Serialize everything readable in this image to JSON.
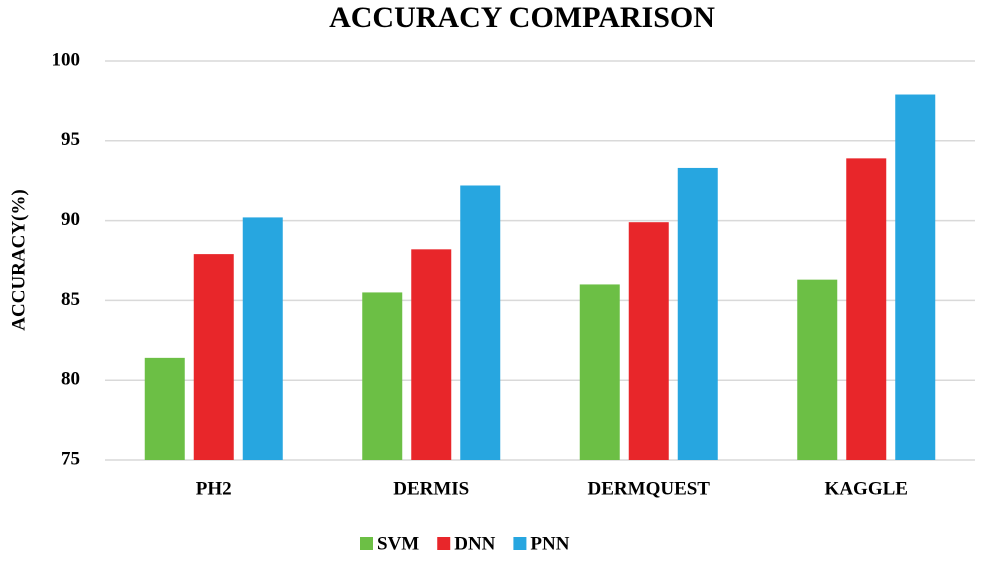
{
  "chart_data": {
    "type": "bar",
    "title": "ACCURACY COMPARISON",
    "y_label": "ACCURACY(%)",
    "categories": [
      "PH2",
      "DERMIS",
      "DERMQUEST",
      "KAGGLE"
    ],
    "series": [
      {
        "name": "SVM",
        "color": "#6cbf45",
        "values": [
          81.4,
          85.5,
          86.0,
          86.3
        ]
      },
      {
        "name": "DNN",
        "color": "#e8262a",
        "values": [
          87.9,
          88.2,
          89.9,
          93.9
        ]
      },
      {
        "name": "PNN",
        "color": "#27a6e0",
        "values": [
          90.2,
          92.2,
          93.3,
          97.9
        ]
      }
    ],
    "ylim": [
      75,
      100
    ],
    "yticks": [
      75,
      80,
      85,
      90,
      95,
      100
    ],
    "grid": true,
    "legend": "bottom"
  }
}
